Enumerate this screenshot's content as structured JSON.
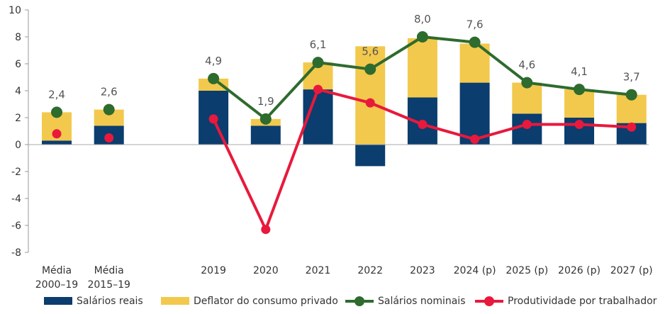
{
  "chart_data": {
    "type": "bar",
    "stacked": true,
    "categories": [
      [
        "Média",
        "2000–19"
      ],
      [
        "Média",
        "2015–19"
      ],
      [
        ""
      ],
      [
        "2019"
      ],
      [
        "2020"
      ],
      [
        "2021"
      ],
      [
        "2022"
      ],
      [
        "2023"
      ],
      [
        "2024 (p)"
      ],
      [
        "2025 (p)"
      ],
      [
        "2026 (p)"
      ],
      [
        "2027 (p)"
      ]
    ],
    "ylim": [
      -8,
      10
    ],
    "yticks": [
      -8,
      -6,
      -4,
      -2,
      0,
      2,
      4,
      6,
      8,
      10
    ],
    "grid": false,
    "legend_position": "bottom",
    "series": [
      {
        "name": "Salários reais",
        "kind": "bar",
        "color": "#0b3d6e",
        "values": [
          0.3,
          1.4,
          null,
          4.0,
          1.4,
          4.1,
          -1.6,
          3.5,
          4.6,
          2.3,
          2.0,
          1.6
        ]
      },
      {
        "name": "Deflator do consumo privado",
        "kind": "bar",
        "color": "#f2c94c",
        "values": [
          2.1,
          1.2,
          null,
          0.9,
          0.5,
          2.0,
          7.3,
          4.4,
          2.9,
          2.3,
          2.1,
          2.1
        ]
      },
      {
        "name": "Salários nominais",
        "kind": "line",
        "color": "#2e6b2e",
        "values": [
          2.4,
          2.6,
          null,
          4.9,
          1.9,
          6.1,
          5.6,
          8.0,
          7.6,
          4.6,
          4.1,
          3.7
        ],
        "labels": [
          "2,4",
          "2,6",
          "",
          "4,9",
          "1,9",
          "6,1",
          "5,6",
          "8,0",
          "7,6",
          "4,6",
          "4,1",
          "3,7"
        ]
      },
      {
        "name": "Produtividade por trabalhador",
        "kind": "line",
        "color": "#e8193c",
        "values": [
          0.8,
          0.5,
          null,
          1.9,
          -6.3,
          4.1,
          3.1,
          1.5,
          0.4,
          1.5,
          1.5,
          1.3
        ]
      }
    ]
  }
}
